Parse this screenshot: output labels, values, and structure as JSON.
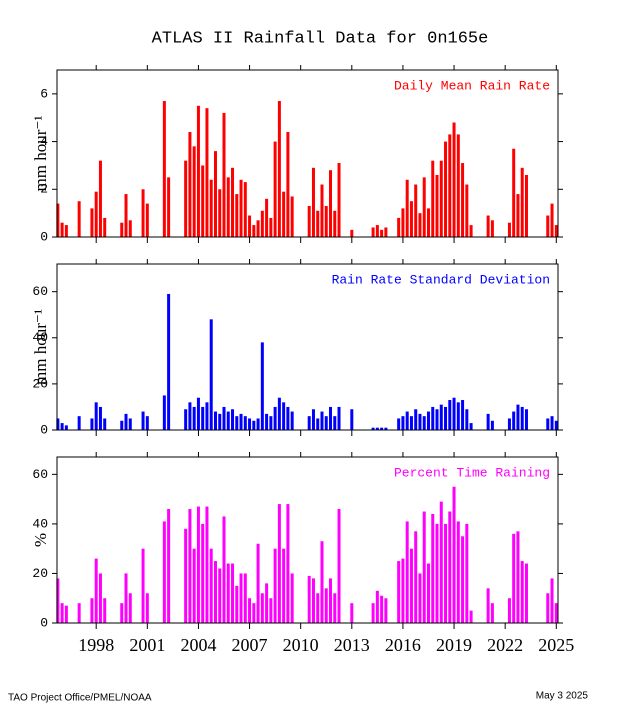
{
  "chart_data": {
    "type": "bar",
    "title": "ATLAS II Rainfall Data for 0n165e",
    "x": [
      1995.75,
      1996,
      1996.25,
      1996.5,
      1996.75,
      1997,
      1997.25,
      1997.5,
      1997.75,
      1998,
      1998.25,
      1998.5,
      1998.75,
      1999,
      1999.25,
      1999.5,
      1999.75,
      2000,
      2000.25,
      2000.5,
      2000.75,
      2001,
      2001.25,
      2001.5,
      2001.75,
      2002,
      2002.25,
      2002.5,
      2002.75,
      2003,
      2003.25,
      2003.5,
      2003.75,
      2004,
      2004.25,
      2004.5,
      2004.75,
      2005,
      2005.25,
      2005.5,
      2005.75,
      2006,
      2006.25,
      2006.5,
      2006.75,
      2007,
      2007.25,
      2007.5,
      2007.75,
      2008,
      2008.25,
      2008.5,
      2008.75,
      2009,
      2009.25,
      2009.5,
      2009.75,
      2010,
      2010.25,
      2010.5,
      2010.75,
      2011,
      2011.25,
      2011.5,
      2011.75,
      2012,
      2012.25,
      2012.5,
      2012.75,
      2013,
      2013.25,
      2013.5,
      2013.75,
      2014,
      2014.25,
      2014.5,
      2014.75,
      2015,
      2015.25,
      2015.5,
      2015.75,
      2016,
      2016.25,
      2016.5,
      2016.75,
      2017,
      2017.25,
      2017.5,
      2017.75,
      2018,
      2018.25,
      2018.5,
      2018.75,
      2019,
      2019.25,
      2019.5,
      2019.75,
      2020,
      2020.25,
      2020.5,
      2020.75,
      2021,
      2021.25,
      2021.5,
      2021.75,
      2022,
      2022.25,
      2022.5,
      2022.75,
      2023,
      2023.25,
      2023.5,
      2023.75,
      2024,
      2024.25,
      2024.5,
      2024.75,
      2025
    ],
    "xlim": [
      1995.7,
      2025.1
    ],
    "xticks": [
      1998,
      2001,
      2004,
      2007,
      2010,
      2013,
      2016,
      2019,
      2022,
      2025
    ],
    "series": [
      {
        "name": "Daily Mean Rain Rate",
        "ylabel": "mm hour⁻¹",
        "color": "#ff0000",
        "ylim": [
          0,
          7
        ],
        "yticks": [
          0,
          2,
          4,
          6
        ],
        "values": [
          1.4,
          0.6,
          0.5,
          null,
          null,
          1.5,
          null,
          null,
          1.2,
          1.9,
          3.2,
          0.8,
          null,
          null,
          null,
          0.6,
          1.8,
          0.7,
          null,
          null,
          2.0,
          1.4,
          null,
          null,
          null,
          5.7,
          2.5,
          null,
          null,
          null,
          3.2,
          4.4,
          3.8,
          5.5,
          3.0,
          5.4,
          2.4,
          3.6,
          2.0,
          5.2,
          2.5,
          2.9,
          1.8,
          2.4,
          2.3,
          0.9,
          0.5,
          0.7,
          1.1,
          1.6,
          0.8,
          4.0,
          5.7,
          1.9,
          4.4,
          1.7,
          null,
          null,
          null,
          1.3,
          2.9,
          1.1,
          2.2,
          1.3,
          2.8,
          1.1,
          3.1,
          null,
          null,
          0.3,
          null,
          null,
          null,
          null,
          0.4,
          0.5,
          0.3,
          0.4,
          null,
          null,
          0.8,
          1.2,
          2.4,
          1.5,
          2.2,
          1.0,
          2.5,
          1.2,
          3.2,
          2.6,
          3.2,
          4.0,
          4.3,
          4.8,
          4.3,
          3.1,
          2.2,
          0.5,
          null,
          null,
          null,
          0.9,
          0.7,
          null,
          null,
          null,
          0.6,
          3.7,
          1.8,
          2.9,
          2.6,
          null,
          null,
          null,
          null,
          0.9,
          1.4,
          0.5
        ]
      },
      {
        "name": "Rain Rate Standard Deviation",
        "ylabel": "mm hour⁻¹",
        "color": "#0000ff",
        "ylim": [
          0,
          72
        ],
        "yticks": [
          0,
          20,
          40,
          60
        ],
        "values": [
          5,
          3,
          2,
          null,
          null,
          6,
          null,
          null,
          5,
          12,
          10,
          5,
          null,
          null,
          null,
          4,
          7,
          5,
          null,
          null,
          8,
          6,
          null,
          null,
          null,
          15,
          59,
          null,
          null,
          null,
          9,
          12,
          10,
          14,
          10,
          12,
          48,
          8,
          7,
          10,
          8,
          9,
          6,
          7,
          6,
          5,
          4,
          5,
          38,
          7,
          6,
          10,
          14,
          12,
          10,
          8,
          null,
          null,
          null,
          6,
          9,
          5,
          8,
          6,
          10,
          6,
          10,
          null,
          null,
          9,
          null,
          null,
          null,
          null,
          1,
          1,
          1,
          1,
          null,
          null,
          5,
          6,
          8,
          6,
          9,
          7,
          6,
          8,
          10,
          9,
          11,
          10,
          13,
          14,
          12,
          13,
          9,
          3,
          null,
          null,
          null,
          7,
          4,
          null,
          null,
          null,
          5,
          8,
          11,
          10,
          9,
          null,
          null,
          null,
          null,
          5,
          6,
          4
        ]
      },
      {
        "name": "Percent Time Raining",
        "ylabel": "%",
        "color": "#ff00ff",
        "ylim": [
          0,
          67
        ],
        "yticks": [
          0,
          20,
          40,
          60
        ],
        "values": [
          18,
          8,
          7,
          null,
          null,
          8,
          null,
          null,
          10,
          26,
          20,
          10,
          null,
          null,
          null,
          8,
          20,
          12,
          null,
          null,
          30,
          12,
          null,
          null,
          null,
          41,
          46,
          null,
          null,
          null,
          38,
          46,
          30,
          47,
          40,
          47,
          30,
          25,
          22,
          43,
          24,
          24,
          15,
          20,
          20,
          10,
          8,
          32,
          12,
          16,
          10,
          30,
          48,
          30,
          48,
          20,
          null,
          null,
          null,
          19,
          18,
          12,
          33,
          14,
          18,
          12,
          46,
          null,
          null,
          8,
          null,
          null,
          null,
          null,
          8,
          13,
          11,
          10,
          null,
          null,
          25,
          26,
          41,
          30,
          37,
          20,
          45,
          24,
          44,
          40,
          49,
          40,
          45,
          55,
          41,
          35,
          40,
          5,
          null,
          null,
          null,
          14,
          8,
          null,
          null,
          null,
          10,
          36,
          37,
          25,
          24,
          null,
          null,
          null,
          null,
          12,
          18,
          8
        ]
      }
    ],
    "footer_left": "TAO Project Office/PMEL/NOAA",
    "footer_right": "May  3 2025"
  }
}
